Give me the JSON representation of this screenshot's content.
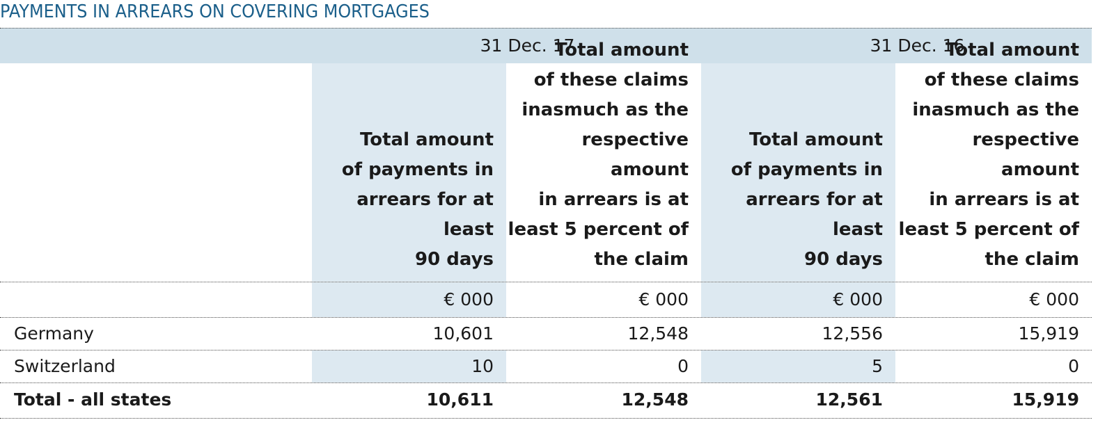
{
  "title": "PAYMENTS IN ARREARS ON COVERING MORTGAGES",
  "periods": [
    "31 Dec. 17",
    "31 Dec. 16"
  ],
  "column_headers": {
    "col1": [
      "Total amount",
      "of payments in",
      "arrears for at least",
      "90 days"
    ],
    "col2": [
      "Total amount",
      "of these claims",
      "inasmuch as the",
      "respective amount",
      "in arrears is at",
      "least 5 percent of",
      "the claim"
    ],
    "col3": [
      "Total amount",
      "of payments in",
      "arrears for at least",
      "90 days"
    ],
    "col4": [
      "Total amount",
      "of these claims",
      "inasmuch as the",
      "respective amount",
      "in arrears is at",
      "least 5 percent of",
      "the claim"
    ]
  },
  "units": [
    "€ 000",
    "€ 000",
    "€ 000",
    "€ 000"
  ],
  "rows": [
    {
      "label": "Germany",
      "values": [
        "10,601",
        "12,548",
        "12,556",
        "15,919"
      ]
    },
    {
      "label": "Switzerland",
      "values": [
        "10",
        "0",
        "5",
        "0"
      ]
    }
  ],
  "total": {
    "label": "Total - all states",
    "values": [
      "10,611",
      "12,548",
      "12,561",
      "15,919"
    ]
  },
  "colors": {
    "title": "#1b5f8a",
    "header_band": "#cfe0ea",
    "column_shade": "#dde9f1"
  }
}
